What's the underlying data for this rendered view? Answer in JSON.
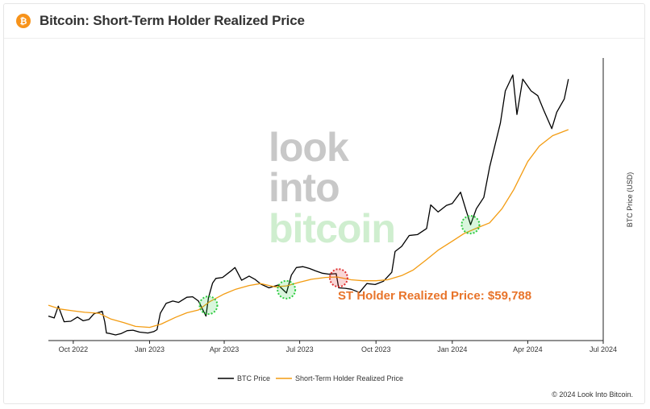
{
  "header": {
    "icon": "bitcoin-icon",
    "icon_glyph": "₿",
    "title": "Bitcoin: Short-Term Holder Realized Price"
  },
  "watermark": {
    "line1": "look",
    "line2": "into",
    "line3": "bitcoin"
  },
  "annotation": "ST Holder Realized Price: $59,788",
  "footer": "© 2024 Look Into Bitcoin.",
  "colors": {
    "btc_price": "#000000",
    "sth_realized": "#f39c12",
    "annotation": "#e8742a",
    "green_marker": "#2ecc40",
    "red_marker": "#e03030"
  },
  "chart_data": {
    "type": "line",
    "title": "Bitcoin: Short-Term Holder Realized Price",
    "xlabel": "",
    "ylabel": "BTC Price (USD)",
    "x_ticks": [
      "Oct 2022",
      "Jan 2023",
      "Apr 2023",
      "Jul 2023",
      "Oct 2023",
      "Jan 2024",
      "Apr 2024",
      "Jul 2024"
    ],
    "xlim": [
      "2022-09-01",
      "2024-07-01"
    ],
    "ylim": [
      15000,
      75000
    ],
    "y_scale": "linear",
    "grid": false,
    "legend_position": "bottom",
    "series": [
      {
        "name": "BTC Price",
        "color": "#000000",
        "x": [
          "2022-09-01",
          "2022-09-08",
          "2022-09-13",
          "2022-09-20",
          "2022-09-28",
          "2022-10-06",
          "2022-10-13",
          "2022-10-20",
          "2022-10-26",
          "2022-11-05",
          "2022-11-08",
          "2022-11-10",
          "2022-11-14",
          "2022-11-21",
          "2022-11-28",
          "2022-12-05",
          "2022-12-12",
          "2022-12-20",
          "2022-12-30",
          "2023-01-06",
          "2023-01-10",
          "2023-01-14",
          "2023-01-21",
          "2023-01-29",
          "2023-02-05",
          "2023-02-15",
          "2023-02-22",
          "2023-03-01",
          "2023-03-10",
          "2023-03-13",
          "2023-03-18",
          "2023-03-22",
          "2023-03-30",
          "2023-04-10",
          "2023-04-14",
          "2023-04-22",
          "2023-05-01",
          "2023-05-08",
          "2023-05-15",
          "2023-05-25",
          "2023-06-05",
          "2023-06-15",
          "2023-06-21",
          "2023-06-27",
          "2023-07-05",
          "2023-07-13",
          "2023-07-20",
          "2023-07-28",
          "2023-08-05",
          "2023-08-14",
          "2023-08-17",
          "2023-08-25",
          "2023-09-01",
          "2023-09-11",
          "2023-09-20",
          "2023-09-30",
          "2023-10-10",
          "2023-10-20",
          "2023-10-24",
          "2023-11-01",
          "2023-11-10",
          "2023-11-20",
          "2023-12-01",
          "2023-12-06",
          "2023-12-15",
          "2023-12-25",
          "2024-01-01",
          "2024-01-11",
          "2024-01-17",
          "2024-01-23",
          "2024-01-30",
          "2024-02-08",
          "2024-02-15",
          "2024-02-28",
          "2024-03-05",
          "2024-03-14",
          "2024-03-19",
          "2024-03-26",
          "2024-04-05",
          "2024-04-13",
          "2024-04-20",
          "2024-04-30",
          "2024-05-06",
          "2024-05-15",
          "2024-05-20"
        ],
        "values": [
          20200,
          19800,
          22300,
          19000,
          19100,
          20000,
          19200,
          19500,
          20700,
          21200,
          19000,
          16600,
          16500,
          16200,
          16500,
          17100,
          17200,
          16800,
          16600,
          16900,
          17300,
          20800,
          22900,
          23400,
          23100,
          24200,
          24300,
          23400,
          20200,
          24100,
          27200,
          28200,
          28400,
          29900,
          30500,
          27800,
          28700,
          28000,
          27000,
          26200,
          26800,
          25100,
          28900,
          30500,
          30700,
          30300,
          29800,
          29300,
          29100,
          29200,
          26200,
          26100,
          25900,
          25200,
          27100,
          26900,
          27600,
          29500,
          33900,
          35000,
          37300,
          37500,
          38800,
          43800,
          42300,
          43700,
          44100,
          46500,
          43000,
          39600,
          43000,
          45400,
          51800,
          61200,
          68000,
          71400,
          63000,
          70500,
          68000,
          67000,
          64000,
          60000,
          63500,
          66300,
          70500
        ]
      },
      {
        "name": "Short-Term Holder Realized Price",
        "color": "#f39c12",
        "x": [
          "2022-09-01",
          "2022-09-15",
          "2022-10-01",
          "2022-10-15",
          "2022-11-01",
          "2022-11-15",
          "2022-12-01",
          "2022-12-15",
          "2023-01-01",
          "2023-01-15",
          "2023-02-01",
          "2023-02-15",
          "2023-03-01",
          "2023-03-15",
          "2023-04-01",
          "2023-04-15",
          "2023-05-01",
          "2023-05-15",
          "2023-06-01",
          "2023-06-15",
          "2023-07-01",
          "2023-07-15",
          "2023-08-01",
          "2023-08-15",
          "2023-09-01",
          "2023-09-15",
          "2023-10-01",
          "2023-10-15",
          "2023-11-01",
          "2023-11-15",
          "2023-12-01",
          "2023-12-15",
          "2024-01-01",
          "2024-01-15",
          "2024-02-01",
          "2024-02-15",
          "2024-03-01",
          "2024-03-15",
          "2024-04-01",
          "2024-04-15",
          "2024-05-01",
          "2024-05-20"
        ],
        "values": [
          22500,
          21700,
          21300,
          21000,
          20800,
          19600,
          18800,
          18000,
          17800,
          18500,
          19900,
          20900,
          21500,
          23300,
          24900,
          25900,
          26700,
          27100,
          26400,
          26600,
          27400,
          28000,
          28400,
          28500,
          27900,
          27700,
          27700,
          27900,
          28800,
          30000,
          32200,
          34200,
          36100,
          37700,
          39000,
          40000,
          43000,
          47000,
          53000,
          56300,
          58500,
          59788
        ]
      }
    ],
    "markers": [
      {
        "date": "2023-03-13",
        "value": 22500,
        "type": "green"
      },
      {
        "date": "2023-06-15",
        "value": 25800,
        "type": "green"
      },
      {
        "date": "2023-08-17",
        "value": 28300,
        "type": "red"
      },
      {
        "date": "2024-01-23",
        "value": 39600,
        "type": "green"
      }
    ]
  },
  "icons": {
    "bitcoin": "bitcoin-icon"
  }
}
